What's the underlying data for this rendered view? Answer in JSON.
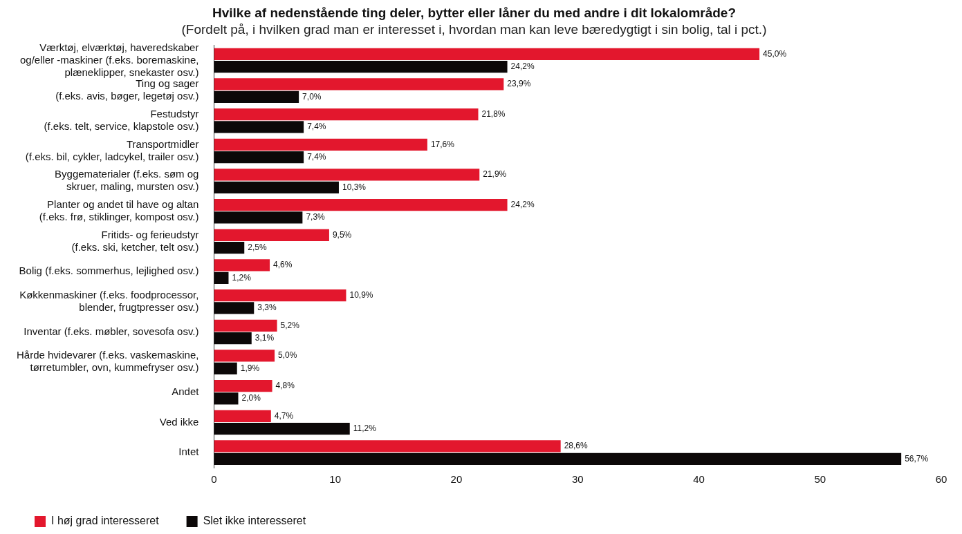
{
  "chart_data": {
    "type": "bar",
    "orientation": "horizontal",
    "title": "Hvilke af nedenstående ting deler, bytter eller låner du med andre i dit lokalområde?",
    "subtitle": "(Fordelt på, i hvilken grad man er interesset i, hvordan man kan leve bæredygtigt i sin bolig, tal i pct.)",
    "categories": [
      "Værktøj, elværktøj, haveredskaber\nog/eller -maskiner (f.eks. boremaskine,\nplæneklipper, snekaster osv.)",
      "Ting og sager\n(f.eks. avis, bøger, legetøj osv.)",
      "Festudstyr\n(f.eks. telt, service, klapstole osv.)",
      "Transportmidler\n(f.eks. bil, cykler, ladcykel, trailer osv.)",
      "Byggematerialer (f.eks. søm og\nskruer, maling, mursten osv.)",
      "Planter og andet til have og altan\n(f.eks. frø, stiklinger, kompost osv.)",
      "Fritids- og ferieudstyr\n(f.eks. ski, ketcher, telt osv.)",
      "Bolig (f.eks. sommerhus, lejlighed osv.)",
      "Køkkenmaskiner (f.eks. foodprocessor,\nblender, frugtpresser osv.)",
      "Inventar (f.eks. møbler, sovesofa osv.)",
      "Hårde hvidevarer (f.eks. vaskemaskine,\ntørretumbler, ovn, kummefryser osv.)",
      "Andet",
      "Ved ikke",
      "Intet"
    ],
    "series": [
      {
        "name": "I høj grad interesseret",
        "color": "#e3172d",
        "values": [
          45.0,
          23.9,
          21.8,
          17.6,
          21.9,
          24.2,
          9.5,
          4.6,
          10.9,
          5.2,
          5.0,
          4.8,
          4.7,
          28.6
        ],
        "value_labels": [
          "45,0%",
          "23,9%",
          "21,8%",
          "17,6%",
          "21,9%",
          "24,2%",
          "9,5%",
          "4,6%",
          "10,9%",
          "5,2%",
          "5,0%",
          "4,8%",
          "4,7%",
          "28,6%"
        ]
      },
      {
        "name": "Slet ikke interesseret",
        "color": "#0c0808",
        "values": [
          24.2,
          7.0,
          7.4,
          7.4,
          10.3,
          7.3,
          2.5,
          1.2,
          3.3,
          3.1,
          1.9,
          2.0,
          11.2,
          56.7
        ],
        "value_labels": [
          "24,2%",
          "7,0%",
          "7,4%",
          "7,4%",
          "10,3%",
          "7,3%",
          "2,5%",
          "1,2%",
          "3,3%",
          "3,1%",
          "1,9%",
          "2,0%",
          "11,2%",
          "56,7%"
        ]
      }
    ],
    "xlim": [
      0,
      60
    ],
    "xticks": [
      0,
      10,
      20,
      30,
      40,
      50,
      60
    ],
    "grid": false,
    "legend": "bottom left"
  }
}
